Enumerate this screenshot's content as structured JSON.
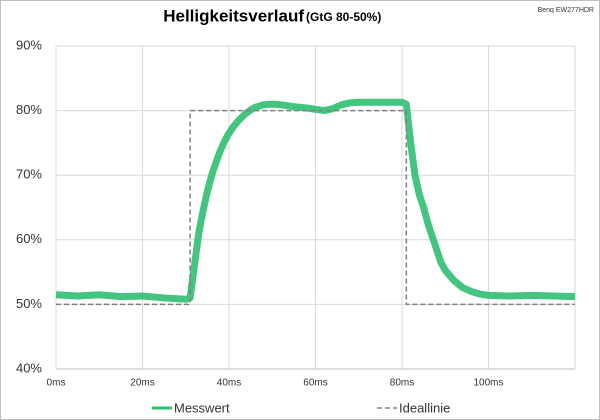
{
  "chart_data": {
    "type": "line",
    "title": "Helligkeitsverlauf",
    "subtitle": "(GtG 80-50%)",
    "annotation": "Benq EW277HDR",
    "xlim": [
      0,
      120
    ],
    "xticks": [
      {
        "value": 0,
        "label": "0ms"
      },
      {
        "value": 20,
        "label": "20ms"
      },
      {
        "value": 40,
        "label": "40ms"
      },
      {
        "value": 60,
        "label": "60ms"
      },
      {
        "value": 80,
        "label": "80ms"
      },
      {
        "value": 100,
        "label": "100ms"
      }
    ],
    "ylim": [
      40,
      90
    ],
    "yticks": [
      {
        "value": 40,
        "label": "40%"
      },
      {
        "value": 50,
        "label": "50%"
      },
      {
        "value": 60,
        "label": "60%"
      },
      {
        "value": 70,
        "label": "70%"
      },
      {
        "value": 80,
        "label": "80%"
      },
      {
        "value": 90,
        "label": "90%"
      }
    ],
    "grid": true,
    "series": [
      {
        "name": "Messwert",
        "color": "#2fbf71",
        "style": "solid",
        "x": [
          0,
          5,
          10,
          15,
          20,
          25,
          30,
          31,
          32,
          33,
          34,
          35,
          36,
          37,
          38,
          39,
          40,
          41,
          42,
          43,
          44,
          45,
          46,
          48,
          50,
          52,
          55,
          58,
          60,
          62,
          64,
          66,
          68,
          70,
          75,
          80,
          81,
          82,
          83,
          84,
          85,
          86,
          87,
          88,
          89,
          90,
          91,
          92,
          94,
          96,
          98,
          100,
          105,
          110,
          115,
          120
        ],
        "values": [
          51.5,
          51.3,
          51.5,
          51.2,
          51.3,
          51,
          50.8,
          51,
          56,
          61,
          64.5,
          67.5,
          70,
          72,
          73.8,
          75.3,
          76.5,
          77.5,
          78.3,
          79,
          79.6,
          80.1,
          80.5,
          80.9,
          81,
          80.9,
          80.6,
          80.4,
          80.2,
          80,
          80.3,
          80.9,
          81.2,
          81.3,
          81.3,
          81.3,
          81,
          75,
          70,
          67,
          65,
          62.5,
          60.5,
          58.5,
          56.5,
          55.3,
          54.5,
          53.7,
          52.6,
          52,
          51.6,
          51.4,
          51.3,
          51.4,
          51.3,
          51.2
        ]
      },
      {
        "name": "Ideallinie",
        "color": "#7f7f7f",
        "style": "dashed",
        "x": [
          0,
          31,
          31,
          81,
          81,
          120
        ],
        "values": [
          50,
          50,
          80,
          80,
          50,
          50
        ]
      }
    ]
  }
}
